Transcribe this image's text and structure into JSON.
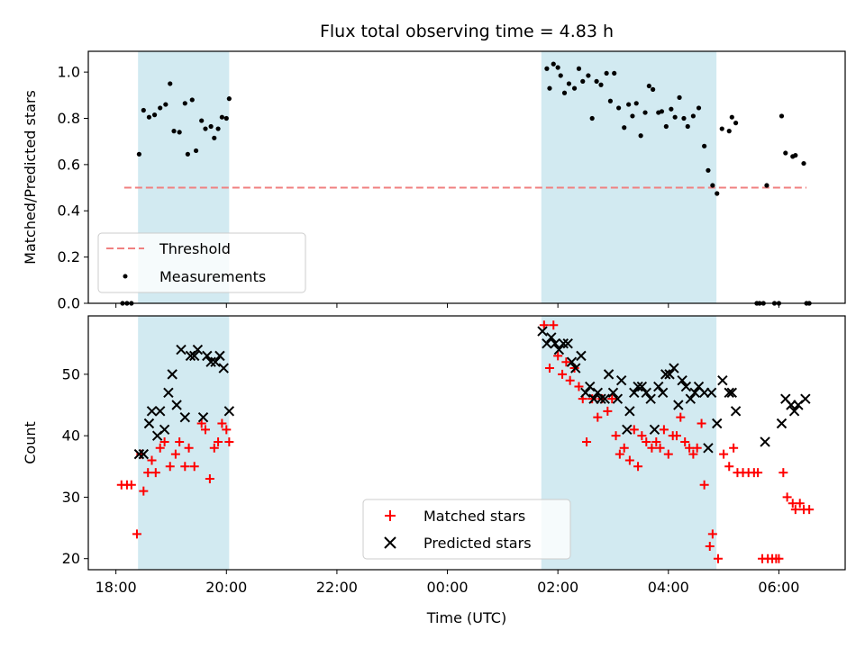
{
  "chart_data": {
    "type": "scatter",
    "title": "Flux total observing time = 4.83 h",
    "xlabel": "Time (UTC)",
    "x_tick_labels": [
      "18:00",
      "20:00",
      "22:00",
      "00:00",
      "02:00",
      "04:00",
      "06:00"
    ],
    "x_tick_hours": [
      0,
      2,
      4,
      6,
      8,
      10,
      12
    ],
    "x_unit": "hours after 18:00 UTC",
    "xlim": [
      -0.5,
      13.2
    ],
    "shaded_intervals": [
      [
        0.4,
        2.05
      ],
      [
        7.7,
        10.87
      ]
    ],
    "shade_color": "#add8e6",
    "top_panel": {
      "ylabel": "Matched/Predicted stars",
      "ylim": [
        0,
        1.09
      ],
      "y_ticks": [
        "0.0",
        "0.2",
        "0.4",
        "0.6",
        "0.8",
        "1.0"
      ],
      "y_tick_values": [
        0,
        0.2,
        0.4,
        0.6,
        0.8,
        1.0
      ],
      "threshold": {
        "name": "Threshold",
        "value": 0.5,
        "x_range": [
          0.15,
          12.5
        ],
        "color": "#f08080"
      },
      "measurements": {
        "name": "Measurements",
        "color": "#000000",
        "points": [
          [
            0.12,
            0
          ],
          [
            0.2,
            0
          ],
          [
            0.28,
            0
          ],
          [
            0.42,
            0.645
          ],
          [
            0.5,
            0.835
          ],
          [
            0.6,
            0.805
          ],
          [
            0.7,
            0.815
          ],
          [
            0.8,
            0.845
          ],
          [
            0.9,
            0.86
          ],
          [
            0.98,
            0.95
          ],
          [
            1.05,
            0.745
          ],
          [
            1.15,
            0.74
          ],
          [
            1.25,
            0.865
          ],
          [
            1.3,
            0.645
          ],
          [
            1.38,
            0.88
          ],
          [
            1.45,
            0.66
          ],
          [
            1.55,
            0.79
          ],
          [
            1.62,
            0.755
          ],
          [
            1.72,
            0.765
          ],
          [
            1.78,
            0.715
          ],
          [
            1.85,
            0.755
          ],
          [
            1.92,
            0.805
          ],
          [
            2.0,
            0.8
          ],
          [
            2.05,
            0.885
          ],
          [
            7.8,
            1.015
          ],
          [
            7.85,
            0.93
          ],
          [
            7.92,
            1.035
          ],
          [
            8.0,
            1.02
          ],
          [
            8.05,
            0.985
          ],
          [
            8.12,
            0.91
          ],
          [
            8.2,
            0.95
          ],
          [
            8.3,
            0.93
          ],
          [
            8.38,
            1.015
          ],
          [
            8.45,
            0.96
          ],
          [
            8.55,
            0.985
          ],
          [
            8.62,
            0.8
          ],
          [
            8.7,
            0.96
          ],
          [
            8.78,
            0.945
          ],
          [
            8.88,
            0.995
          ],
          [
            8.95,
            0.875
          ],
          [
            9.02,
            0.995
          ],
          [
            9.1,
            0.845
          ],
          [
            9.2,
            0.76
          ],
          [
            9.28,
            0.86
          ],
          [
            9.35,
            0.81
          ],
          [
            9.42,
            0.865
          ],
          [
            9.5,
            0.725
          ],
          [
            9.58,
            0.825
          ],
          [
            9.65,
            0.94
          ],
          [
            9.72,
            0.925
          ],
          [
            9.82,
            0.825
          ],
          [
            9.88,
            0.83
          ],
          [
            9.96,
            0.765
          ],
          [
            10.05,
            0.84
          ],
          [
            10.12,
            0.805
          ],
          [
            10.2,
            0.89
          ],
          [
            10.28,
            0.8
          ],
          [
            10.35,
            0.765
          ],
          [
            10.45,
            0.81
          ],
          [
            10.55,
            0.845
          ],
          [
            10.65,
            0.68
          ],
          [
            10.72,
            0.575
          ],
          [
            10.8,
            0.51
          ],
          [
            10.88,
            0.475
          ],
          [
            10.97,
            0.755
          ],
          [
            11.1,
            0.745
          ],
          [
            11.15,
            0.805
          ],
          [
            11.22,
            0.78
          ],
          [
            11.6,
            0
          ],
          [
            11.65,
            0
          ],
          [
            11.72,
            0
          ],
          [
            11.78,
            0.51
          ],
          [
            11.92,
            0
          ],
          [
            12.0,
            0
          ],
          [
            12.05,
            0.81
          ],
          [
            12.12,
            0.65
          ],
          [
            12.25,
            0.635
          ],
          [
            12.3,
            0.64
          ],
          [
            12.45,
            0.605
          ],
          [
            12.5,
            0
          ],
          [
            12.55,
            0
          ]
        ]
      },
      "legend": {
        "position": "lower left",
        "entries": [
          "Threshold",
          "Measurements"
        ]
      }
    },
    "bottom_panel": {
      "ylabel": "Count",
      "ylim": [
        18.2,
        59.5
      ],
      "y_ticks": [
        "20",
        "30",
        "40",
        "50"
      ],
      "y_tick_values": [
        20,
        30,
        40,
        50
      ],
      "series": [
        {
          "name": "Matched stars",
          "marker": "+",
          "color": "#ff0000",
          "points": [
            [
              0.1,
              32
            ],
            [
              0.2,
              32
            ],
            [
              0.28,
              32
            ],
            [
              0.38,
              24
            ],
            [
              0.45,
              37
            ],
            [
              0.5,
              31
            ],
            [
              0.58,
              34
            ],
            [
              0.65,
              36
            ],
            [
              0.72,
              34
            ],
            [
              0.8,
              38
            ],
            [
              0.88,
              39
            ],
            [
              0.98,
              35
            ],
            [
              1.08,
              37
            ],
            [
              1.15,
              39
            ],
            [
              1.25,
              35
            ],
            [
              1.32,
              38
            ],
            [
              1.42,
              35
            ],
            [
              1.55,
              42
            ],
            [
              1.62,
              41
            ],
            [
              1.7,
              33
            ],
            [
              1.78,
              38
            ],
            [
              1.85,
              39
            ],
            [
              1.92,
              42
            ],
            [
              2.0,
              41
            ],
            [
              2.05,
              39
            ],
            [
              7.75,
              58
            ],
            [
              7.85,
              51
            ],
            [
              7.92,
              58
            ],
            [
              8.0,
              53
            ],
            [
              8.08,
              50
            ],
            [
              8.15,
              52
            ],
            [
              8.22,
              49
            ],
            [
              8.3,
              51
            ],
            [
              8.38,
              48
            ],
            [
              8.45,
              46
            ],
            [
              8.52,
              39
            ],
            [
              8.62,
              46
            ],
            [
              8.72,
              43
            ],
            [
              8.8,
              46
            ],
            [
              8.9,
              44
            ],
            [
              8.98,
              46
            ],
            [
              9.05,
              40
            ],
            [
              9.12,
              37
            ],
            [
              9.2,
              38
            ],
            [
              9.3,
              36
            ],
            [
              9.38,
              41
            ],
            [
              9.45,
              35
            ],
            [
              9.52,
              40
            ],
            [
              9.6,
              39
            ],
            [
              9.7,
              38
            ],
            [
              9.78,
              39
            ],
            [
              9.85,
              38
            ],
            [
              9.92,
              41
            ],
            [
              10.0,
              37
            ],
            [
              10.08,
              40
            ],
            [
              10.15,
              40
            ],
            [
              10.22,
              43
            ],
            [
              10.3,
              39
            ],
            [
              10.38,
              38
            ],
            [
              10.45,
              37
            ],
            [
              10.52,
              38
            ],
            [
              10.6,
              42
            ],
            [
              10.65,
              32
            ],
            [
              10.75,
              22
            ],
            [
              10.8,
              24
            ],
            [
              10.9,
              20
            ],
            [
              11.0,
              37
            ],
            [
              11.1,
              35
            ],
            [
              11.18,
              38
            ],
            [
              11.25,
              34
            ],
            [
              11.35,
              34
            ],
            [
              11.45,
              34
            ],
            [
              11.55,
              34
            ],
            [
              11.62,
              34
            ],
            [
              11.7,
              20
            ],
            [
              11.8,
              20
            ],
            [
              11.88,
              20
            ],
            [
              11.95,
              20
            ],
            [
              12.0,
              20
            ],
            [
              12.08,
              34
            ],
            [
              12.15,
              30
            ],
            [
              12.25,
              29
            ],
            [
              12.3,
              28
            ],
            [
              12.38,
              29
            ],
            [
              12.45,
              28
            ],
            [
              12.55,
              28
            ]
          ]
        },
        {
          "name": "Predicted stars",
          "marker": "x",
          "color": "#000000",
          "points": [
            [
              0.42,
              37
            ],
            [
              0.5,
              37
            ],
            [
              0.6,
              42
            ],
            [
              0.65,
              44
            ],
            [
              0.75,
              40
            ],
            [
              0.8,
              44
            ],
            [
              0.88,
              41
            ],
            [
              0.95,
              47
            ],
            [
              1.02,
              50
            ],
            [
              1.1,
              45
            ],
            [
              1.18,
              54
            ],
            [
              1.25,
              43
            ],
            [
              1.35,
              53
            ],
            [
              1.42,
              53
            ],
            [
              1.48,
              54
            ],
            [
              1.58,
              43
            ],
            [
              1.65,
              53
            ],
            [
              1.72,
              52
            ],
            [
              1.8,
              52
            ],
            [
              1.88,
              53
            ],
            [
              1.95,
              51
            ],
            [
              2.05,
              44
            ],
            [
              7.72,
              57
            ],
            [
              7.8,
              55
            ],
            [
              7.88,
              56
            ],
            [
              7.95,
              55
            ],
            [
              8.02,
              54
            ],
            [
              8.1,
              55
            ],
            [
              8.18,
              55
            ],
            [
              8.25,
              52
            ],
            [
              8.32,
              51
            ],
            [
              8.42,
              53
            ],
            [
              8.5,
              47
            ],
            [
              8.58,
              48
            ],
            [
              8.65,
              46
            ],
            [
              8.72,
              47
            ],
            [
              8.78,
              46
            ],
            [
              8.85,
              46
            ],
            [
              8.92,
              50
            ],
            [
              9.0,
              47
            ],
            [
              9.08,
              46
            ],
            [
              9.15,
              49
            ],
            [
              9.25,
              41
            ],
            [
              9.3,
              44
            ],
            [
              9.38,
              47
            ],
            [
              9.45,
              48
            ],
            [
              9.52,
              48
            ],
            [
              9.6,
              47
            ],
            [
              9.68,
              46
            ],
            [
              9.75,
              41
            ],
            [
              9.82,
              48
            ],
            [
              9.9,
              47
            ],
            [
              9.95,
              50
            ],
            [
              10.02,
              50
            ],
            [
              10.1,
              51
            ],
            [
              10.18,
              45
            ],
            [
              10.25,
              49
            ],
            [
              10.32,
              48
            ],
            [
              10.4,
              46
            ],
            [
              10.48,
              47
            ],
            [
              10.55,
              48
            ],
            [
              10.65,
              47
            ],
            [
              10.72,
              38
            ],
            [
              10.78,
              47
            ],
            [
              10.88,
              42
            ],
            [
              10.98,
              49
            ],
            [
              11.1,
              47
            ],
            [
              11.15,
              47
            ],
            [
              11.22,
              44
            ],
            [
              11.75,
              39
            ],
            [
              12.05,
              42
            ],
            [
              12.12,
              46
            ],
            [
              12.22,
              45
            ],
            [
              12.28,
              44
            ],
            [
              12.35,
              45
            ],
            [
              12.48,
              46
            ]
          ]
        }
      ],
      "legend": {
        "position": "lower center",
        "entries": [
          "Matched stars",
          "Predicted stars"
        ]
      }
    }
  }
}
